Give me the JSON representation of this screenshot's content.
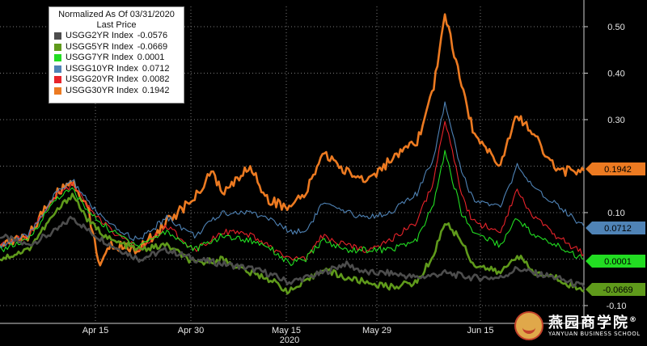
{
  "chart_data": {
    "type": "line",
    "legend": {
      "title_line1": "Normalized As Of 03/31/2020",
      "title_line2": "Last Price",
      "placement": "top-left"
    },
    "x_ticks": [
      "Apr 15",
      "Apr 30",
      "May 15",
      "May 29",
      "Jun 15"
    ],
    "x_year_label": "2020",
    "y_ticks": [
      "0.50",
      "0.40",
      "0.30",
      "0.10",
      "-0.10"
    ],
    "ylim": [
      -0.12,
      0.55
    ],
    "grid": true,
    "series": [
      {
        "name": "USGG2YR Index",
        "last": "-0.0576",
        "color": "#4d4d4d",
        "badge": "",
        "points": [
          [
            0,
            0.05
          ],
          [
            5,
            0.03
          ],
          [
            10,
            0.06
          ],
          [
            13,
            0.09
          ],
          [
            16,
            0.06
          ],
          [
            20,
            0.03
          ],
          [
            25,
            0.0
          ],
          [
            30,
            0.02
          ],
          [
            35,
            0.0
          ],
          [
            40,
            -0.01
          ],
          [
            45,
            -0.02
          ],
          [
            48,
            -0.03
          ],
          [
            52,
            -0.05
          ],
          [
            55,
            -0.04
          ],
          [
            58,
            -0.03
          ],
          [
            62,
            -0.01
          ],
          [
            66,
            -0.03
          ],
          [
            70,
            -0.03
          ],
          [
            75,
            -0.04
          ],
          [
            80,
            -0.03
          ],
          [
            85,
            -0.04
          ],
          [
            90,
            -0.04
          ],
          [
            93,
            -0.02
          ],
          [
            96,
            -0.03
          ],
          [
            100,
            -0.04
          ],
          [
            105,
            -0.06
          ]
        ]
      },
      {
        "name": "USGG5YR Index",
        "last": "-0.0669",
        "color": "#5f9a1b",
        "badge": "-0.0669",
        "points": [
          [
            0,
            0.0
          ],
          [
            5,
            0.02
          ],
          [
            10,
            0.1
          ],
          [
            13,
            0.14
          ],
          [
            16,
            0.08
          ],
          [
            20,
            0.04
          ],
          [
            25,
            0.02
          ],
          [
            30,
            0.03
          ],
          [
            35,
            -0.01
          ],
          [
            40,
            0.0
          ],
          [
            45,
            -0.03
          ],
          [
            48,
            -0.04
          ],
          [
            52,
            -0.07
          ],
          [
            55,
            -0.05
          ],
          [
            58,
            -0.02
          ],
          [
            62,
            -0.04
          ],
          [
            66,
            -0.05
          ],
          [
            70,
            -0.06
          ],
          [
            75,
            -0.05
          ],
          [
            78,
            0.01
          ],
          [
            80,
            0.08
          ],
          [
            83,
            0.04
          ],
          [
            85,
            -0.01
          ],
          [
            90,
            -0.03
          ],
          [
            93,
            0.01
          ],
          [
            96,
            -0.03
          ],
          [
            100,
            -0.04
          ],
          [
            105,
            -0.07
          ]
        ]
      },
      {
        "name": "USGG7YR Index",
        "last": "0.0001",
        "color": "#22dd22",
        "badge": "0.0001",
        "points": [
          [
            0,
            0.02
          ],
          [
            5,
            0.04
          ],
          [
            10,
            0.13
          ],
          [
            13,
            0.15
          ],
          [
            16,
            0.1
          ],
          [
            20,
            0.06
          ],
          [
            25,
            0.03
          ],
          [
            30,
            0.06
          ],
          [
            35,
            0.02
          ],
          [
            40,
            0.05
          ],
          [
            45,
            0.04
          ],
          [
            48,
            0.03
          ],
          [
            52,
            -0.01
          ],
          [
            55,
            0.0
          ],
          [
            58,
            0.04
          ],
          [
            62,
            0.02
          ],
          [
            66,
            0.02
          ],
          [
            70,
            0.02
          ],
          [
            75,
            0.04
          ],
          [
            78,
            0.12
          ],
          [
            80,
            0.23
          ],
          [
            83,
            0.1
          ],
          [
            85,
            0.06
          ],
          [
            90,
            0.03
          ],
          [
            93,
            0.09
          ],
          [
            96,
            0.05
          ],
          [
            100,
            0.03
          ],
          [
            105,
            0.0
          ]
        ]
      },
      {
        "name": "USGG10YR Index",
        "last": "0.0712",
        "color": "#4f83b6",
        "badge": "0.0712",
        "points": [
          [
            0,
            0.03
          ],
          [
            5,
            0.05
          ],
          [
            10,
            0.14
          ],
          [
            13,
            0.17
          ],
          [
            16,
            0.12
          ],
          [
            20,
            0.07
          ],
          [
            25,
            0.04
          ],
          [
            30,
            0.09
          ],
          [
            35,
            0.05
          ],
          [
            40,
            0.1
          ],
          [
            45,
            0.1
          ],
          [
            48,
            0.09
          ],
          [
            52,
            0.06
          ],
          [
            55,
            0.06
          ],
          [
            58,
            0.12
          ],
          [
            62,
            0.1
          ],
          [
            66,
            0.09
          ],
          [
            70,
            0.1
          ],
          [
            75,
            0.14
          ],
          [
            78,
            0.22
          ],
          [
            80,
            0.34
          ],
          [
            83,
            0.19
          ],
          [
            85,
            0.13
          ],
          [
            90,
            0.11
          ],
          [
            93,
            0.2
          ],
          [
            96,
            0.15
          ],
          [
            100,
            0.12
          ],
          [
            105,
            0.07
          ]
        ]
      },
      {
        "name": "USGG20YR Index",
        "last": "0.0082",
        "color": "#e8232a",
        "badge": "",
        "points": [
          [
            0,
            0.03
          ],
          [
            5,
            0.05
          ],
          [
            10,
            0.14
          ],
          [
            13,
            0.16
          ],
          [
            16,
            0.11
          ],
          [
            20,
            0.06
          ],
          [
            25,
            0.02
          ],
          [
            30,
            0.07
          ],
          [
            35,
            0.02
          ],
          [
            40,
            0.06
          ],
          [
            45,
            0.05
          ],
          [
            48,
            0.03
          ],
          [
            52,
            0.0
          ],
          [
            55,
            0.0
          ],
          [
            58,
            0.05
          ],
          [
            62,
            0.03
          ],
          [
            66,
            0.02
          ],
          [
            70,
            0.04
          ],
          [
            75,
            0.08
          ],
          [
            78,
            0.17
          ],
          [
            80,
            0.3
          ],
          [
            83,
            0.14
          ],
          [
            85,
            0.08
          ],
          [
            90,
            0.06
          ],
          [
            93,
            0.15
          ],
          [
            96,
            0.09
          ],
          [
            100,
            0.05
          ],
          [
            105,
            0.01
          ]
        ]
      },
      {
        "name": "USGG30YR Index",
        "last": "0.1942",
        "color": "#ec7a21",
        "badge": "0.1942",
        "points": [
          [
            0,
            0.03
          ],
          [
            5,
            0.05
          ],
          [
            10,
            0.14
          ],
          [
            13,
            0.17
          ],
          [
            16,
            0.1
          ],
          [
            18,
            -0.02
          ],
          [
            20,
            0.03
          ],
          [
            25,
            0.02
          ],
          [
            30,
            0.08
          ],
          [
            35,
            0.13
          ],
          [
            38,
            0.19
          ],
          [
            40,
            0.14
          ],
          [
            45,
            0.2
          ],
          [
            48,
            0.13
          ],
          [
            52,
            0.11
          ],
          [
            55,
            0.14
          ],
          [
            58,
            0.23
          ],
          [
            62,
            0.19
          ],
          [
            66,
            0.17
          ],
          [
            70,
            0.21
          ],
          [
            75,
            0.25
          ],
          [
            78,
            0.37
          ],
          [
            80,
            0.53
          ],
          [
            83,
            0.37
          ],
          [
            85,
            0.28
          ],
          [
            90,
            0.2
          ],
          [
            93,
            0.31
          ],
          [
            96,
            0.27
          ],
          [
            100,
            0.19
          ],
          [
            105,
            0.19
          ]
        ]
      }
    ]
  },
  "logo": {
    "cn": "燕园商学院",
    "reg": "®",
    "en": "YANYUAN BUSINESS SCHOOL"
  }
}
